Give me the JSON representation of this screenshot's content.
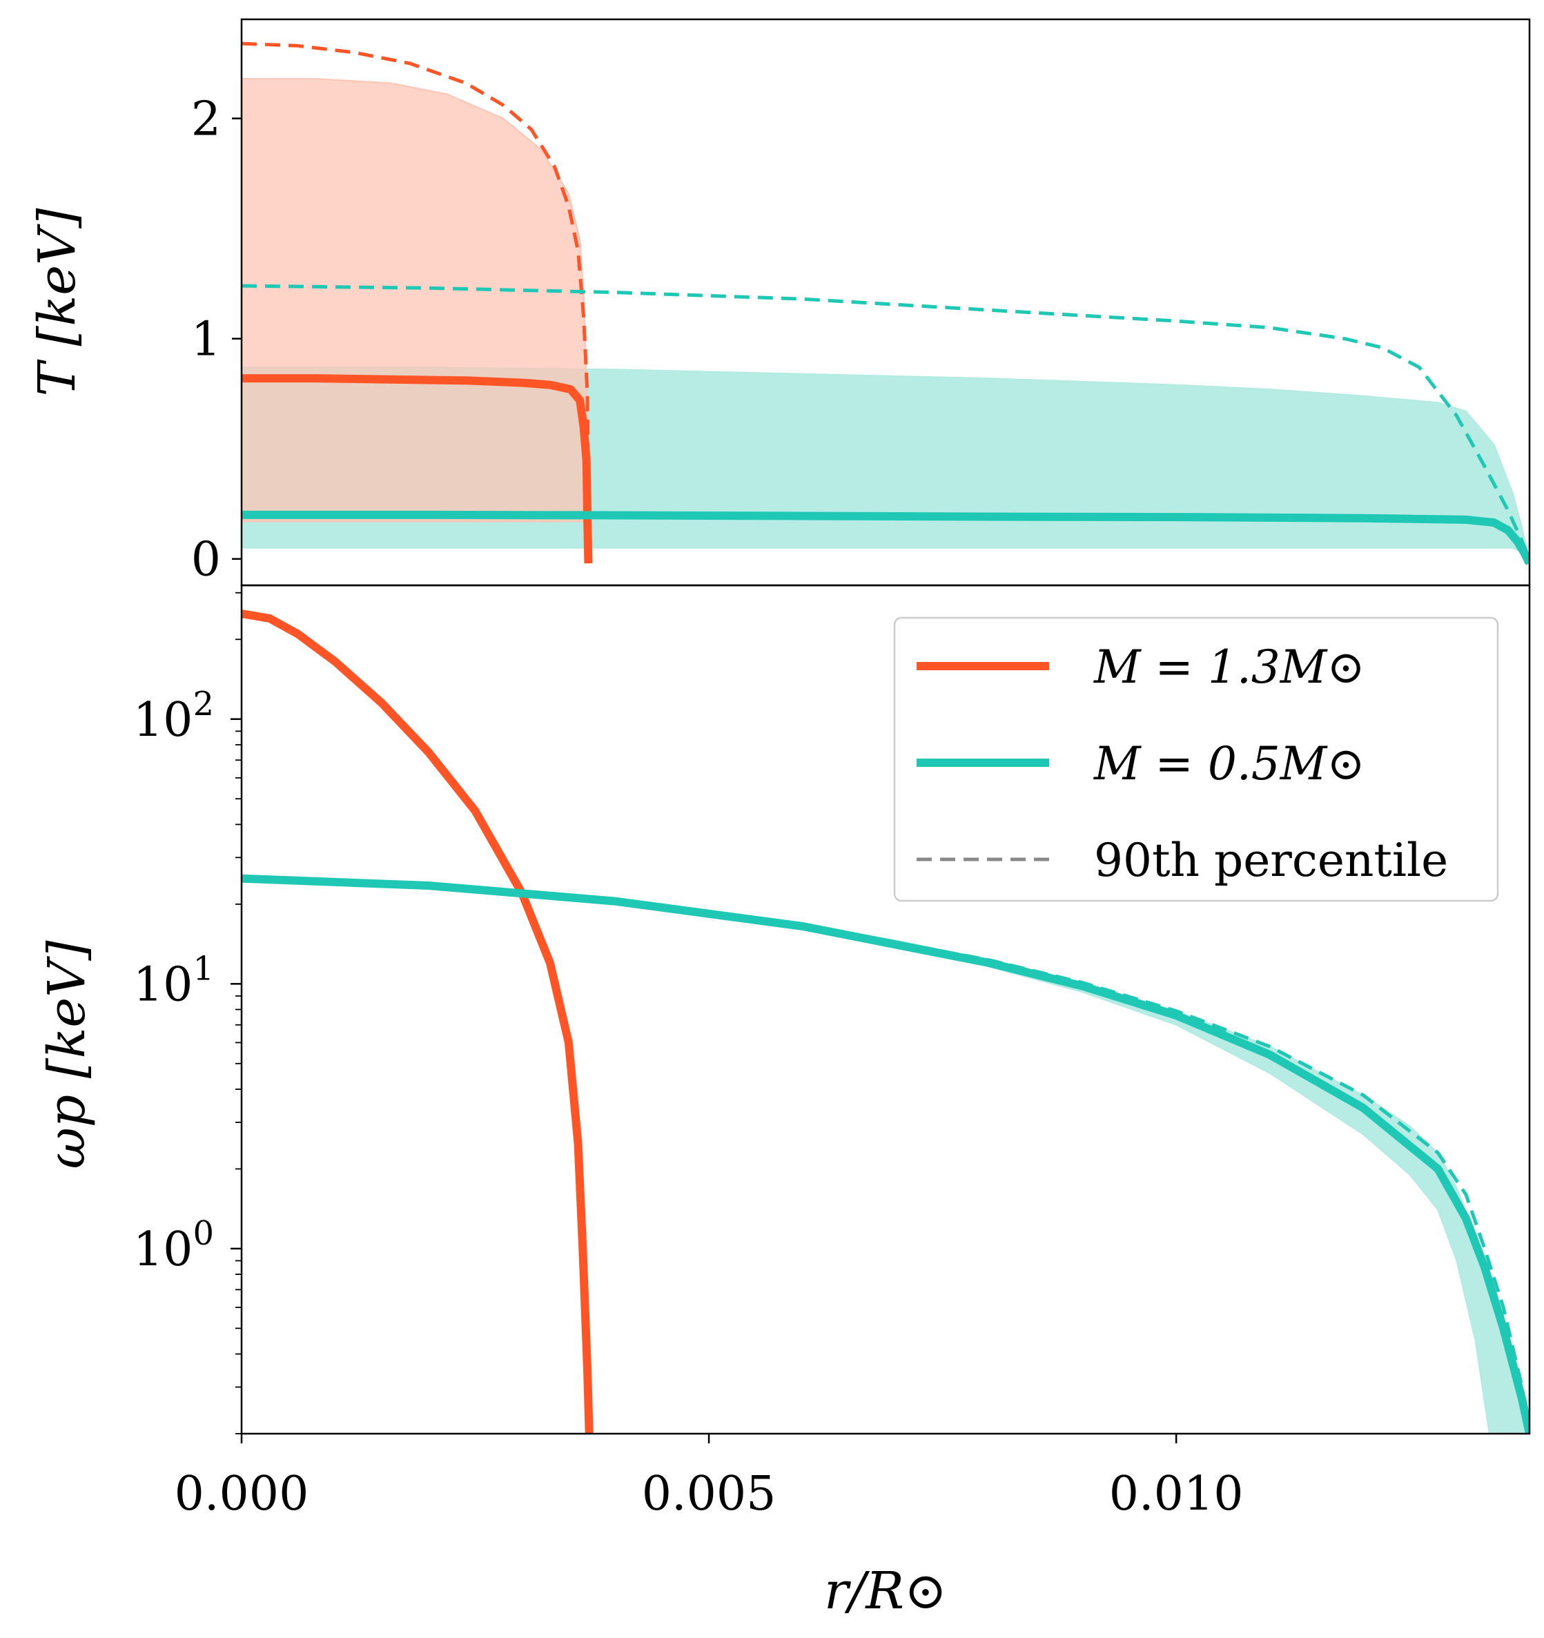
{
  "chart_data": [
    {
      "type": "line",
      "panel": "top",
      "ylabel": "T [keV]",
      "xlim": [
        0,
        0.01378
      ],
      "ylim": [
        -0.12,
        2.45
      ],
      "yticks": [
        0,
        1,
        2
      ],
      "ytick_labels": [
        "0",
        "1",
        "2"
      ],
      "series": [
        {
          "name": "M = 1.3M⊙",
          "color": "#ff5526",
          "style": "solid",
          "x": [
            0,
            0.0008,
            0.0016,
            0.0024,
            0.003,
            0.0033,
            0.00352,
            0.00362,
            0.00366,
            0.00369,
            0.0037,
            0.00371
          ],
          "y": [
            0.82,
            0.82,
            0.815,
            0.81,
            0.8,
            0.79,
            0.77,
            0.72,
            0.6,
            0.45,
            0.2,
            -0.02
          ]
        },
        {
          "name": "M = 1.3M⊙ 90th percentile",
          "color": "#ff5526",
          "style": "dashed",
          "x": [
            0,
            0.0006,
            0.0012,
            0.0018,
            0.0024,
            0.0028,
            0.0031,
            0.00335,
            0.0035,
            0.0036,
            0.00366,
            0.0037,
            0.00372
          ],
          "y": [
            2.34,
            2.33,
            2.3,
            2.25,
            2.16,
            2.06,
            1.95,
            1.78,
            1.6,
            1.4,
            1.1,
            0.75,
            -0.02
          ]
        },
        {
          "name": "M = 1.3M⊙ band",
          "color": "#fcc5b4",
          "style": "band",
          "x": [
            0,
            0.0008,
            0.0016,
            0.0022,
            0.0028,
            0.0032,
            0.0035,
            0.00362,
            0.00366,
            0.0037
          ],
          "y_low": [
            0.17,
            0.17,
            0.17,
            0.17,
            0.17,
            0.17,
            0.17,
            0.17,
            0.17,
            0.17
          ],
          "y_high": [
            2.18,
            2.18,
            2.16,
            2.11,
            2.0,
            1.86,
            1.66,
            1.45,
            1.2,
            0.7
          ]
        },
        {
          "name": "M = 0.5M⊙",
          "color": "#1fc8b4",
          "style": "solid",
          "x": [
            0,
            0.002,
            0.004,
            0.006,
            0.008,
            0.01,
            0.012,
            0.0131,
            0.0134,
            0.01355,
            0.01365,
            0.01372,
            0.01378
          ],
          "y": [
            0.2,
            0.2,
            0.198,
            0.195,
            0.192,
            0.19,
            0.185,
            0.178,
            0.165,
            0.13,
            0.08,
            0.03,
            -0.02
          ]
        },
        {
          "name": "M = 0.5M⊙ 90th percentile",
          "color": "#1fc8b4",
          "style": "dashed",
          "x": [
            0,
            0.002,
            0.004,
            0.006,
            0.008,
            0.01,
            0.011,
            0.0118,
            0.0122,
            0.0126,
            0.013,
            0.0133,
            0.01355,
            0.0137,
            0.01378
          ],
          "y": [
            1.24,
            1.23,
            1.21,
            1.18,
            1.13,
            1.08,
            1.05,
            1.0,
            0.96,
            0.87,
            0.65,
            0.42,
            0.22,
            0.08,
            0.0
          ]
        },
        {
          "name": "M = 0.5M⊙ band",
          "color": "#b2ebe2",
          "style": "band",
          "x": [
            0,
            0.002,
            0.004,
            0.006,
            0.008,
            0.01,
            0.011,
            0.012,
            0.0128,
            0.0131,
            0.0134,
            0.0136,
            0.0137,
            0.01378
          ],
          "y_low": [
            0.05,
            0.05,
            0.05,
            0.05,
            0.05,
            0.05,
            0.05,
            0.05,
            0.05,
            0.05,
            0.05,
            0.05,
            0.03,
            0.0
          ],
          "y_high": [
            0.87,
            0.87,
            0.86,
            0.84,
            0.82,
            0.79,
            0.77,
            0.74,
            0.71,
            0.67,
            0.52,
            0.3,
            0.14,
            0.0
          ]
        }
      ]
    },
    {
      "type": "line",
      "panel": "bottom",
      "ylabel": "ωp [keV]",
      "xlabel": "r/R⊙",
      "yscale": "log",
      "xlim": [
        0,
        0.01378
      ],
      "ylim": [
        0.2,
        320
      ],
      "xticks": [
        0,
        0.005,
        0.01
      ],
      "xtick_labels": [
        "0.000",
        "0.005",
        "0.010"
      ],
      "yticks": [
        1,
        10,
        100
      ],
      "ytick_labels": [
        "10^0",
        "10^1",
        "10^2"
      ],
      "series": [
        {
          "name": "M = 1.3M⊙",
          "color": "#ff5526",
          "style": "solid",
          "x": [
            0,
            0.0003,
            0.0006,
            0.001,
            0.0015,
            0.002,
            0.0025,
            0.003,
            0.0033,
            0.0035,
            0.0036,
            0.00365,
            0.0037,
            0.00372
          ],
          "y": [
            250,
            240,
            210,
            165,
            115,
            75,
            45,
            22,
            12,
            6,
            2.5,
            1.0,
            0.35,
            0.2
          ]
        },
        {
          "name": "M = 0.5M⊙",
          "color": "#1fc8b4",
          "style": "solid",
          "x": [
            0,
            0.002,
            0.004,
            0.006,
            0.008,
            0.009,
            0.01,
            0.011,
            0.012,
            0.0128,
            0.0131,
            0.0133,
            0.0135,
            0.0137,
            0.01378
          ],
          "y": [
            25,
            23.5,
            20.5,
            16.5,
            12,
            9.8,
            7.6,
            5.4,
            3.4,
            2.0,
            1.3,
            0.85,
            0.5,
            0.27,
            0.2
          ]
        },
        {
          "name": "M = 0.5M⊙ 90th percentile",
          "color": "#1fc8b4",
          "style": "dashed",
          "x": [
            0,
            0.002,
            0.004,
            0.006,
            0.008,
            0.009,
            0.01,
            0.011,
            0.012,
            0.0128,
            0.0131,
            0.0133,
            0.0135,
            0.0137,
            0.01378
          ],
          "y": [
            25,
            23.6,
            20.6,
            16.7,
            12.3,
            10.1,
            7.9,
            5.8,
            3.8,
            2.3,
            1.6,
            1.0,
            0.6,
            0.3,
            0.2
          ]
        },
        {
          "name": "M = 0.5M⊙ band",
          "color": "#b2ebe2",
          "style": "band",
          "x": [
            0,
            0.002,
            0.004,
            0.006,
            0.007,
            0.008,
            0.009,
            0.01,
            0.011,
            0.012,
            0.0125,
            0.0128,
            0.013,
            0.0132,
            0.01335,
            0.01378
          ],
          "y_low": [
            25,
            23.5,
            20.5,
            16.4,
            14.2,
            11.6,
            9.3,
            7.0,
            4.6,
            2.7,
            1.9,
            1.4,
            0.9,
            0.45,
            0.2,
            0.2
          ],
          "y_high": [
            25,
            23.6,
            20.6,
            16.7,
            14.6,
            12.3,
            10.1,
            7.9,
            5.8,
            3.8,
            2.9,
            2.3,
            1.7,
            1.1,
            0.7,
            0.2
          ]
        }
      ],
      "legend": {
        "position": "upper right",
        "entries": [
          {
            "label": "M = 1.3M⊙",
            "color": "#ff5526",
            "style": "solid"
          },
          {
            "label": "M = 0.5M⊙",
            "color": "#1fc8b4",
            "style": "solid"
          },
          {
            "label": "90th percentile",
            "color": "#888888",
            "style": "dashed"
          }
        ]
      }
    }
  ]
}
